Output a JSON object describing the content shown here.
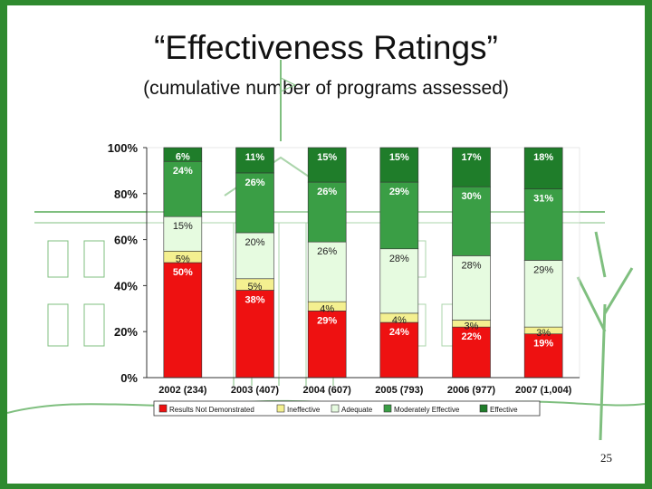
{
  "title": "“Effectiveness Ratings”",
  "subtitle": "(cumulative number of programs assessed)",
  "page_number": "25",
  "colors": {
    "frame": "#2f8a2f",
    "results_not_demonstrated": "#ee1111",
    "ineffective": "#f4f090",
    "adequate": "#e6fbe0",
    "moderately_effective": "#3a9e45",
    "effective": "#1f7d2a"
  },
  "chart_data": {
    "type": "bar",
    "stacked": true,
    "title": "",
    "xlabel": "",
    "ylabel": "",
    "ylim": [
      0,
      100
    ],
    "yticks": [
      "0%",
      "20%",
      "40%",
      "60%",
      "80%",
      "100%"
    ],
    "categories": [
      "2002 (234)",
      "2003 (407)",
      "2004 (607)",
      "2005 (793)",
      "2006 (977)",
      "2007 (1,004)"
    ],
    "legend_position": "bottom",
    "series": [
      {
        "name": "Results Not Demonstrated",
        "color": "#ee1111",
        "values": [
          50,
          38,
          29,
          24,
          22,
          19
        ],
        "labels": [
          "50%",
          "38%",
          "29%",
          "24%",
          "22%",
          "19%"
        ]
      },
      {
        "name": "Ineffective",
        "color": "#f4f090",
        "values": [
          5,
          5,
          4,
          4,
          3,
          3
        ],
        "labels": [
          "5%",
          "5%",
          "4%",
          "4%",
          "3%",
          "3%"
        ]
      },
      {
        "name": "Adequate",
        "color": "#e6fbe0",
        "values": [
          15,
          20,
          26,
          28,
          28,
          29
        ],
        "labels": [
          "15%",
          "20%",
          "26%",
          "28%",
          "28%",
          "29%"
        ]
      },
      {
        "name": "Moderately Effective",
        "color": "#3a9e45",
        "values": [
          24,
          26,
          26,
          29,
          30,
          31
        ],
        "labels": [
          "24%",
          "26%",
          "26%",
          "29%",
          "30%",
          "31%"
        ]
      },
      {
        "name": "Effective",
        "color": "#1f7d2a",
        "values": [
          6,
          11,
          15,
          15,
          17,
          18
        ],
        "labels": [
          "6%",
          "11%",
          "15%",
          "15%",
          "17%",
          "18%"
        ]
      }
    ]
  }
}
